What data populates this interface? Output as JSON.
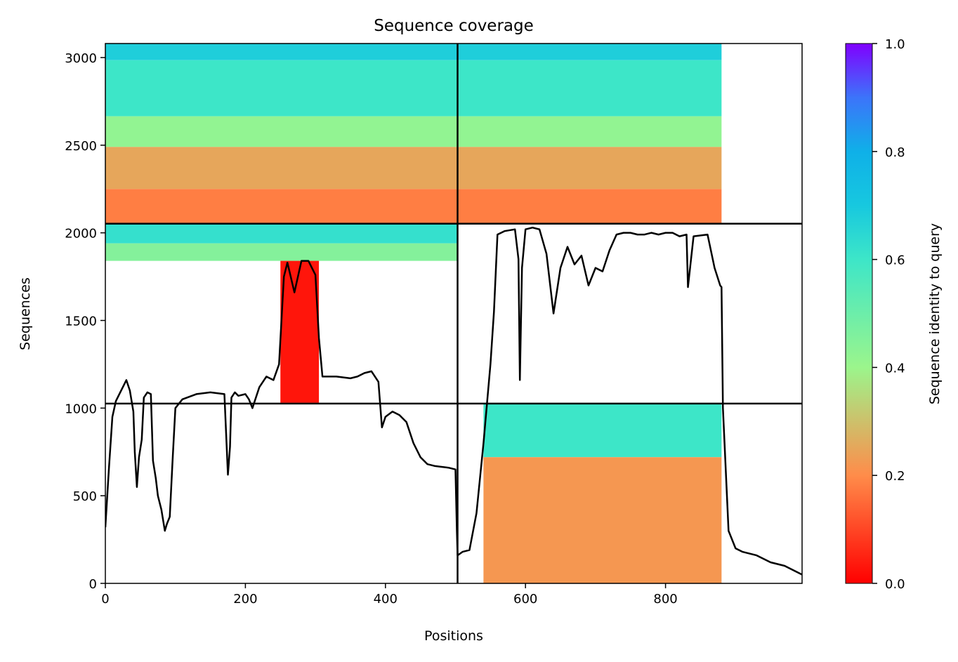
{
  "chart_data": {
    "type": "heatmap",
    "title": "Sequence coverage",
    "xlabel": "Positions",
    "ylabel": "Sequences",
    "xlim": [
      0,
      995
    ],
    "ylim": [
      0,
      3080
    ],
    "x_ticks": [
      0,
      200,
      400,
      600,
      800
    ],
    "y_ticks": [
      0,
      500,
      1000,
      1500,
      2000,
      2500,
      3000
    ],
    "colorbar": {
      "label": "Sequence identity to query",
      "range": [
        0,
        1
      ],
      "ticks": [
        0.0,
        0.2,
        0.4,
        0.6,
        0.8,
        1.0
      ],
      "tick_labels": [
        "0.0",
        "0.2",
        "0.4",
        "0.6",
        "0.8",
        "1.0"
      ],
      "colormap": "rainbow_r"
    },
    "chain_boundaries": {
      "x": [
        503
      ],
      "y": [
        1026,
        2052
      ]
    },
    "blocks": [
      {
        "name": "upper-left",
        "x": [
          0,
          503
        ],
        "y": [
          2052,
          3080
        ],
        "bands": [
          {
            "y": [
              2985,
              3080
            ],
            "identity": 0.68
          },
          {
            "y": [
              2665,
              2985
            ],
            "identity": 0.6
          },
          {
            "y": [
              2490,
              2665
            ],
            "identity": 0.42
          },
          {
            "y": [
              2250,
              2490
            ],
            "identity": 0.25
          },
          {
            "y": [
              2052,
              2250
            ],
            "identity": 0.18
          }
        ]
      },
      {
        "name": "upper-right",
        "x": [
          503,
          880
        ],
        "y": [
          2052,
          3080
        ],
        "bands": [
          {
            "y": [
              2985,
              3080
            ],
            "identity": 0.68
          },
          {
            "y": [
              2665,
              2985
            ],
            "identity": 0.6
          },
          {
            "y": [
              2490,
              2665
            ],
            "identity": 0.42
          },
          {
            "y": [
              2250,
              2490
            ],
            "identity": 0.25
          },
          {
            "y": [
              2052,
              2250
            ],
            "identity": 0.18
          }
        ]
      },
      {
        "name": "middle-left",
        "x": [
          0,
          503
        ],
        "y": [
          1840,
          2052
        ],
        "bands": [
          {
            "y": [
              1940,
              2052
            ],
            "identity": 0.62
          },
          {
            "y": [
              1840,
              1940
            ],
            "identity": 0.45
          }
        ]
      },
      {
        "name": "middle-left-red",
        "x": [
          250,
          305
        ],
        "y": [
          1030,
          1840
        ],
        "bands": [
          {
            "y": [
              1030,
              1840
            ],
            "identity": 0.03
          }
        ]
      },
      {
        "name": "lower-right",
        "x": [
          540,
          880
        ],
        "y": [
          0,
          1026
        ],
        "bands": [
          {
            "y": [
              720,
              1026
            ],
            "identity": 0.6
          },
          {
            "y": [
              0,
              720
            ],
            "identity": 0.22
          }
        ]
      }
    ],
    "coverage_line": {
      "name": "coverage",
      "x": [
        0,
        5,
        10,
        15,
        20,
        25,
        30,
        35,
        40,
        42,
        45,
        48,
        52,
        55,
        60,
        65,
        68,
        72,
        75,
        80,
        85,
        88,
        92,
        96,
        100,
        110,
        130,
        150,
        170,
        175,
        178,
        180,
        185,
        190,
        200,
        205,
        210,
        220,
        230,
        240,
        248,
        255,
        260,
        270,
        280,
        290,
        300,
        305,
        310,
        330,
        350,
        360,
        370,
        380,
        390,
        395,
        400,
        410,
        420,
        430,
        440,
        450,
        460,
        470,
        480,
        490,
        500,
        502,
        503,
        510,
        520,
        530,
        540,
        550,
        555,
        560,
        570,
        585,
        590,
        592,
        595,
        600,
        610,
        620,
        630,
        640,
        650,
        660,
        670,
        680,
        690,
        700,
        710,
        720,
        730,
        740,
        750,
        760,
        770,
        780,
        790,
        800,
        810,
        820,
        830,
        832,
        840,
        860,
        870,
        878,
        880,
        882,
        890,
        900,
        910,
        930,
        950,
        970,
        985,
        995
      ],
      "y": [
        320,
        650,
        950,
        1040,
        1080,
        1120,
        1160,
        1100,
        980,
        750,
        550,
        720,
        820,
        1060,
        1090,
        1080,
        700,
        600,
        500,
        420,
        300,
        340,
        380,
        700,
        1000,
        1050,
        1080,
        1090,
        1080,
        620,
        780,
        1060,
        1090,
        1070,
        1080,
        1050,
        1000,
        1120,
        1180,
        1160,
        1250,
        1750,
        1830,
        1660,
        1840,
        1840,
        1760,
        1400,
        1180,
        1180,
        1170,
        1180,
        1200,
        1210,
        1150,
        890,
        950,
        980,
        960,
        920,
        800,
        720,
        680,
        670,
        665,
        660,
        650,
        300,
        160,
        180,
        190,
        400,
        800,
        1250,
        1550,
        1990,
        2010,
        2020,
        1850,
        1160,
        1800,
        2020,
        2030,
        2020,
        1880,
        1540,
        1800,
        1920,
        1820,
        1870,
        1700,
        1800,
        1780,
        1900,
        1990,
        2000,
        2000,
        1990,
        1990,
        2000,
        1990,
        2000,
        2000,
        1980,
        1990,
        1690,
        1980,
        1990,
        1800,
        1700,
        1690,
        1000,
        300,
        200,
        180,
        160,
        120,
        100,
        70,
        50
      ]
    }
  }
}
